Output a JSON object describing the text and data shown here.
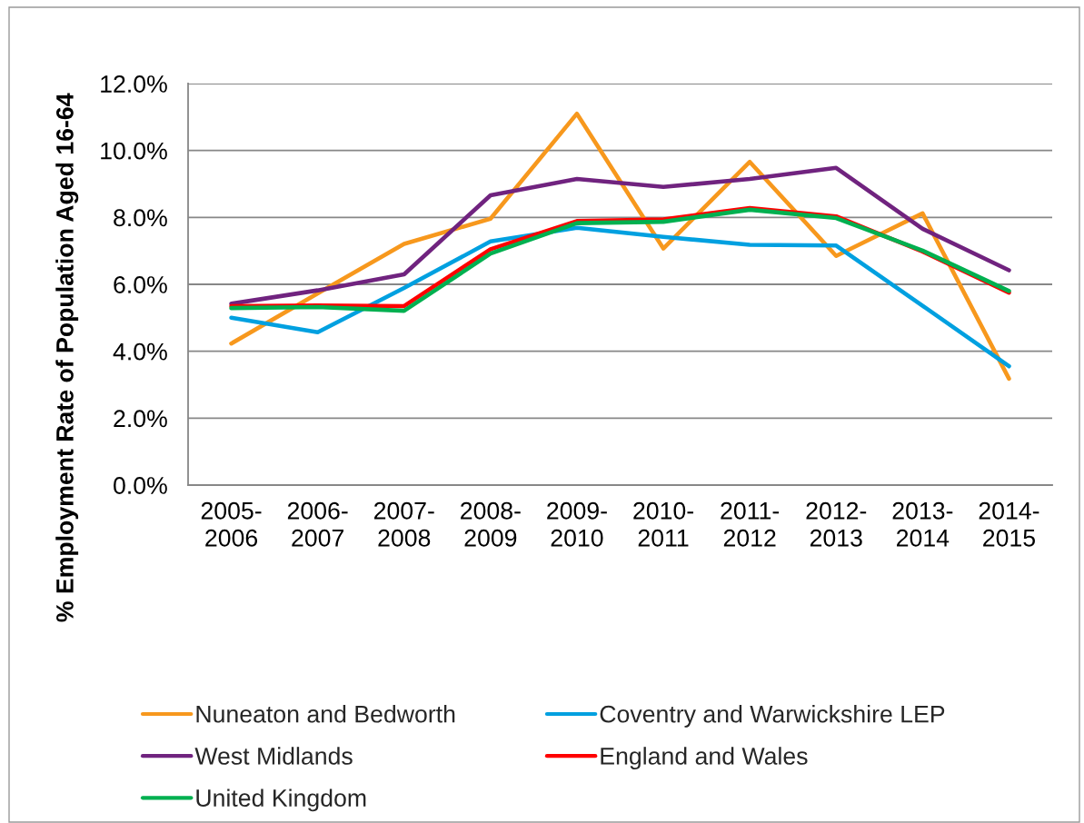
{
  "chart_data": {
    "type": "line",
    "ylabel": "% Employment Rate of Population Aged 16-64",
    "categories": [
      "2005-2006",
      "2006-2007",
      "2007-2008",
      "2008-2009",
      "2009-2010",
      "2010-2011",
      "2011-2012",
      "2012-2013",
      "2013-2014",
      "2014-2015"
    ],
    "series": [
      {
        "name": "Nuneaton and Bedworth",
        "color": "#f7981d",
        "values": [
          4.23,
          5.73,
          7.21,
          7.96,
          11.1,
          7.07,
          9.66,
          6.85,
          8.12,
          3.18
        ]
      },
      {
        "name": "Coventry and Warwickshire LEP",
        "color": "#00a0e0",
        "values": [
          5.0,
          4.57,
          5.89,
          7.28,
          7.69,
          7.42,
          7.18,
          7.16,
          5.36,
          3.55
        ]
      },
      {
        "name": "West Midlands",
        "color": "#70237f",
        "values": [
          5.42,
          5.82,
          6.3,
          8.66,
          9.15,
          8.91,
          9.15,
          9.48,
          7.66,
          6.42
        ]
      },
      {
        "name": "England and Wales",
        "color": "#ff0000",
        "values": [
          5.35,
          5.37,
          5.35,
          7.05,
          7.89,
          7.94,
          8.28,
          8.03,
          6.98,
          5.75
        ]
      },
      {
        "name": "United Kingdom",
        "color": "#00b050",
        "values": [
          5.29,
          5.32,
          5.21,
          6.92,
          7.83,
          7.87,
          8.23,
          7.98,
          7.01,
          5.8
        ]
      }
    ],
    "ylim": [
      0,
      12
    ],
    "yticks": [
      {
        "value": 0,
        "label": "0.0%"
      },
      {
        "value": 2,
        "label": "2.0%"
      },
      {
        "value": 4,
        "label": "4.0%"
      },
      {
        "value": 6,
        "label": "6.0%"
      },
      {
        "value": 8,
        "label": "8.0%"
      },
      {
        "value": 10,
        "label": "10.0%"
      },
      {
        "value": 12,
        "label": "12.0%"
      }
    ],
    "grid": "y",
    "legend": "bottom"
  }
}
